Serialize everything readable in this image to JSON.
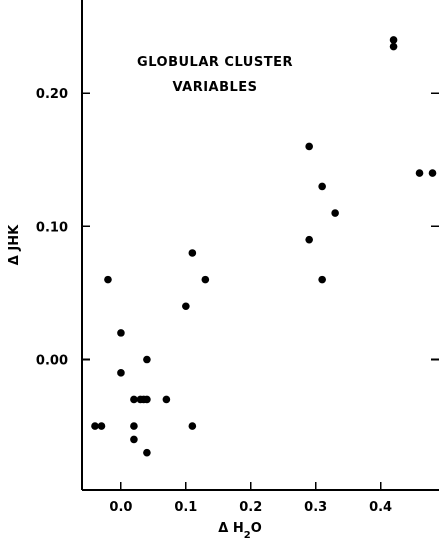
{
  "chart_data": {
    "type": "scatter",
    "title_lines": [
      "GLOBULAR CLUSTER",
      "VARIABLES"
    ],
    "xlabel": "Δ H2O",
    "ylabel": "Δ JHK",
    "xlim": [
      -0.06,
      0.49
    ],
    "ylim": [
      -0.098,
      0.27
    ],
    "xticks": [
      0.0,
      0.1,
      0.2,
      0.3,
      0.4
    ],
    "xtick_labels": [
      "0.0",
      "0.1",
      "0.2",
      "0.3",
      "0.4"
    ],
    "yticks": [
      0.0,
      0.1,
      0.2
    ],
    "ytick_labels": [
      "0.00",
      "0.10",
      "0.20"
    ],
    "grid": false,
    "marker_color": "#000000",
    "series": [
      {
        "points": [
          {
            "x": -0.04,
            "y": -0.05
          },
          {
            "x": -0.03,
            "y": -0.05
          },
          {
            "x": -0.02,
            "y": 0.06
          },
          {
            "x": 0.0,
            "y": 0.02
          },
          {
            "x": 0.0,
            "y": -0.01
          },
          {
            "x": 0.02,
            "y": -0.03
          },
          {
            "x": 0.02,
            "y": -0.05
          },
          {
            "x": 0.02,
            "y": -0.06
          },
          {
            "x": 0.03,
            "y": -0.03
          },
          {
            "x": 0.035,
            "y": -0.03
          },
          {
            "x": 0.04,
            "y": -0.03
          },
          {
            "x": 0.04,
            "y": 0.0
          },
          {
            "x": 0.04,
            "y": -0.07
          },
          {
            "x": 0.07,
            "y": -0.03
          },
          {
            "x": 0.1,
            "y": 0.04
          },
          {
            "x": 0.11,
            "y": 0.08
          },
          {
            "x": 0.11,
            "y": -0.05
          },
          {
            "x": 0.13,
            "y": 0.06
          },
          {
            "x": 0.29,
            "y": 0.16
          },
          {
            "x": 0.29,
            "y": 0.09
          },
          {
            "x": 0.31,
            "y": 0.13
          },
          {
            "x": 0.31,
            "y": 0.06
          },
          {
            "x": 0.33,
            "y": 0.11
          },
          {
            "x": 0.42,
            "y": 0.24
          },
          {
            "x": 0.42,
            "y": 0.235
          },
          {
            "x": 0.46,
            "y": 0.14
          },
          {
            "x": 0.48,
            "y": 0.14
          }
        ]
      }
    ]
  }
}
